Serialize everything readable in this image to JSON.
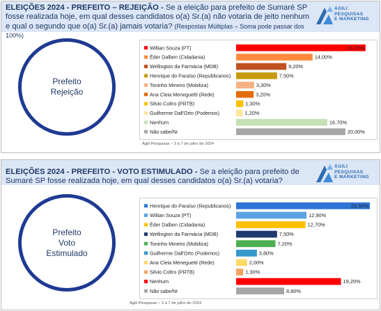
{
  "rejeicao": {
    "title_bold": "ELEIÇÕES 2024 - PREFEITO – REJEIÇÃO -",
    "question": "Se a eleição para prefeito de Sumaré SP fosse realizada hoje, em qual desses candidatos o(a) Sr.(a) não votaria de jeito nenhum e qual o segundo que o(a) Sr.(a) jamais votaria?",
    "note": "(Respostas Múltiplas – Soma pode passar dos 100%)",
    "circle_label": "Prefeito\nRejeição",
    "source": "Ágili Pesquisas – 3 à 7 de julho de 2024",
    "logo_text": [
      "ÁGILI",
      "PESQUISAS",
      "E MARKETING"
    ]
  },
  "estimulado": {
    "title_bold": "ELEIÇÕES 2024 - PREFEITO - VOTO ESTIMULADO -",
    "question": "Se a eleição para prefeito de Sumaré SP fosse realizada hoje, em qual desses candidatos o(a) Sr.(a) votaria?",
    "circle_label": "Prefeito\nVoto\nEstimulado",
    "source": "Ágili Pesquisas – 3 à 7 de julho de 2024",
    "logo_text": [
      "ÁGILI",
      "PESQUISAS",
      "E MARKETING"
    ]
  },
  "chart_data": [
    {
      "type": "bar",
      "orientation": "horizontal",
      "title": "",
      "xlim": [
        0,
        25
      ],
      "legend": "left",
      "categories": [
        "Willian Souza (PT)",
        "Éder Dalben (Cidadania)",
        "Wellington da Farmácia (MDB)",
        "Henrique do Paraíso (Republicanos)",
        "Toninho Mineiro (Mobiliza)",
        "Ana Cleia Meneguetti (Rede)",
        "Silvio Coltro (PRTB)",
        "Guilherme Dall'Orto (Podemos)",
        "Nenhum",
        "Não sabe/Nr"
      ],
      "values": [
        23.7,
        14.0,
        9.2,
        7.5,
        3.3,
        3.2,
        1.3,
        1.2,
        16.7,
        20.0
      ],
      "labels": [
        "23,70%",
        "14,00%",
        "9,20%",
        "7,50%",
        "3,30%",
        "3,20%",
        "1,30%",
        "1,20%",
        "16,70%",
        "20,00%"
      ],
      "colors": [
        "#ff0000",
        "#ff8a3c",
        "#c0501f",
        "#c89a10",
        "#f4b183",
        "#e46c0a",
        "#ffc000",
        "#ffe699",
        "#c5e0b4",
        "#a6a6a6"
      ]
    },
    {
      "type": "bar",
      "orientation": "horizontal",
      "title": "",
      "xlim": [
        0,
        25
      ],
      "legend": "left",
      "categories": [
        "Henrique do Paraíso (Republicanos)",
        "Willian Souza (PT)",
        "Éder Dalben (Cidadania)",
        "Wellington da Farmácia (MDB)",
        "Toninho Mineiro (Mobiliza)",
        "Guilherme Dall'Orto (Podemos)",
        "Ana Cleia Meneguetti (Rede)",
        "Silvio Coltro (PRTB)",
        "Nenhum",
        "Não sabe/Nr"
      ],
      "values": [
        24.5,
        12.9,
        12.7,
        7.5,
        7.2,
        3.8,
        2.0,
        1.3,
        19.2,
        8.8
      ],
      "labels": [
        "24,50%",
        "12,90%",
        "12,70%",
        "7,50%",
        "7,20%",
        "3,80%",
        "2,00%",
        "1,30%",
        "19,20%",
        "8,80%"
      ],
      "colors": [
        "#2e75d6",
        "#5ba3e0",
        "#ffc000",
        "#1f3a6e",
        "#4caf50",
        "#3399cc",
        "#ffd966",
        "#f4a460",
        "#ff0000",
        "#a6a6a6"
      ]
    }
  ]
}
